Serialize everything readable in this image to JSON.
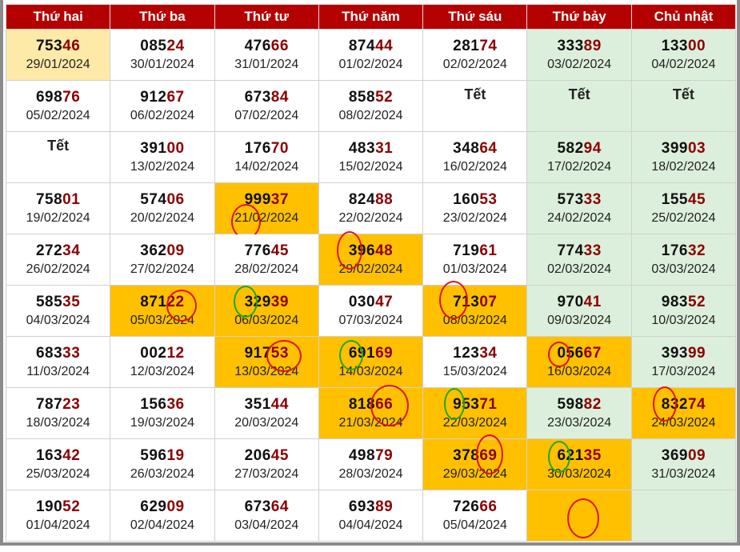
{
  "colors": {
    "header_bg": "#b50000",
    "weekend_bg": "#dcefdc",
    "highlight_orange": "#ffc000",
    "highlight_yellow": "#fde9a8",
    "tail_color": "#8b0000",
    "circle_red": "#e0141e",
    "circle_green": "#1fa81f"
  },
  "headers": [
    "Thứ hai",
    "Thứ ba",
    "Thứ tư",
    "Thứ năm",
    "Thứ sáu",
    "Thứ bảy",
    "Chủ nhật"
  ],
  "weeks": [
    [
      {
        "head": "753",
        "tail": "46",
        "date": "29/01/2024",
        "style": "hl-yellow"
      },
      {
        "head": "085",
        "tail": "24",
        "date": "30/01/2024"
      },
      {
        "head": "476",
        "tail": "66",
        "date": "31/01/2024"
      },
      {
        "head": "874",
        "tail": "44",
        "date": "01/02/2024"
      },
      {
        "head": "281",
        "tail": "74",
        "date": "02/02/2024"
      },
      {
        "head": "333",
        "tail": "89",
        "date": "03/02/2024",
        "style": "weekend"
      },
      {
        "head": "133",
        "tail": "00",
        "date": "04/02/2024",
        "style": "weekend"
      }
    ],
    [
      {
        "head": "698",
        "tail": "76",
        "date": "05/02/2024"
      },
      {
        "head": "912",
        "tail": "67",
        "date": "06/02/2024"
      },
      {
        "head": "673",
        "tail": "84",
        "date": "07/02/2024"
      },
      {
        "head": "858",
        "tail": "52",
        "date": "08/02/2024"
      },
      {
        "tet": "Tết"
      },
      {
        "tet": "Tết",
        "style": "weekend"
      },
      {
        "tet": "Tết",
        "style": "weekend"
      }
    ],
    [
      {
        "tet": "Tết"
      },
      {
        "head": "391",
        "tail": "00",
        "date": "13/02/2024"
      },
      {
        "head": "176",
        "tail": "70",
        "date": "14/02/2024"
      },
      {
        "head": "483",
        "tail": "31",
        "date": "15/02/2024"
      },
      {
        "head": "348",
        "tail": "64",
        "date": "16/02/2024"
      },
      {
        "head": "582",
        "tail": "94",
        "date": "17/02/2024",
        "style": "weekend"
      },
      {
        "head": "399",
        "tail": "03",
        "date": "18/02/2024",
        "style": "weekend"
      }
    ],
    [
      {
        "head": "758",
        "tail": "01",
        "date": "19/02/2024"
      },
      {
        "head": "574",
        "tail": "06",
        "date": "20/02/2024"
      },
      {
        "head": "999",
        "tail": "37",
        "date": "21/02/2024",
        "style": "hl-orange"
      },
      {
        "head": "824",
        "tail": "88",
        "date": "22/02/2024"
      },
      {
        "head": "160",
        "tail": "53",
        "date": "23/02/2024"
      },
      {
        "head": "573",
        "tail": "33",
        "date": "24/02/2024",
        "style": "weekend"
      },
      {
        "head": "155",
        "tail": "45",
        "date": "25/02/2024",
        "style": "weekend"
      }
    ],
    [
      {
        "head": "272",
        "tail": "34",
        "date": "26/02/2024"
      },
      {
        "head": "362",
        "tail": "09",
        "date": "27/02/2024"
      },
      {
        "head": "776",
        "tail": "45",
        "date": "28/02/2024"
      },
      {
        "head": "396",
        "tail": "48",
        "date": "29/02/2024",
        "style": "hl-orange"
      },
      {
        "head": "719",
        "tail": "61",
        "date": "01/03/2024"
      },
      {
        "head": "774",
        "tail": "33",
        "date": "02/03/2024",
        "style": "weekend"
      },
      {
        "head": "176",
        "tail": "32",
        "date": "03/03/2024",
        "style": "weekend"
      }
    ],
    [
      {
        "head": "585",
        "tail": "35",
        "date": "04/03/2024"
      },
      {
        "head": "871",
        "tail": "22",
        "date": "05/03/2024",
        "style": "hl-orange"
      },
      {
        "head": "329",
        "tail": "39",
        "date": "06/03/2024",
        "style": "hl-orange"
      },
      {
        "head": "030",
        "tail": "47",
        "date": "07/03/2024"
      },
      {
        "head": "713",
        "tail": "07",
        "date": "08/03/2024",
        "style": "hl-orange"
      },
      {
        "head": "970",
        "tail": "41",
        "date": "09/03/2024",
        "style": "weekend"
      },
      {
        "head": "983",
        "tail": "52",
        "date": "10/03/2024",
        "style": "weekend"
      }
    ],
    [
      {
        "head": "683",
        "tail": "33",
        "date": "11/03/2024"
      },
      {
        "head": "002",
        "tail": "12",
        "date": "12/03/2024"
      },
      {
        "head": "917",
        "tail": "53",
        "date": "13/03/2024",
        "style": "hl-orange"
      },
      {
        "head": "691",
        "tail": "69",
        "date": "14/03/2024",
        "style": "hl-orange"
      },
      {
        "head": "123",
        "tail": "34",
        "date": "15/03/2024"
      },
      {
        "head": "056",
        "tail": "67",
        "date": "16/03/2024",
        "style": "hl-orange"
      },
      {
        "head": "393",
        "tail": "99",
        "date": "17/03/2024",
        "style": "weekend"
      }
    ],
    [
      {
        "head": "787",
        "tail": "23",
        "date": "18/03/2024"
      },
      {
        "head": "156",
        "tail": "36",
        "date": "19/03/2024"
      },
      {
        "head": "351",
        "tail": "44",
        "date": "20/03/2024"
      },
      {
        "head": "818",
        "tail": "66",
        "date": "21/03/2024",
        "style": "hl-orange"
      },
      {
        "head": "953",
        "tail": "71",
        "date": "22/03/2024",
        "style": "hl-orange"
      },
      {
        "head": "598",
        "tail": "82",
        "date": "23/03/2024",
        "style": "weekend"
      },
      {
        "head": "832",
        "tail": "74",
        "date": "24/03/2024",
        "style": "hl-orange"
      }
    ],
    [
      {
        "head": "163",
        "tail": "42",
        "date": "25/03/2024"
      },
      {
        "head": "596",
        "tail": "19",
        "date": "26/03/2024"
      },
      {
        "head": "206",
        "tail": "45",
        "date": "27/03/2024"
      },
      {
        "head": "498",
        "tail": "79",
        "date": "28/03/2024"
      },
      {
        "head": "378",
        "tail": "69",
        "date": "29/03/2024",
        "style": "hl-orange"
      },
      {
        "head": "621",
        "tail": "35",
        "date": "30/03/2024",
        "style": "hl-orange"
      },
      {
        "head": "369",
        "tail": "09",
        "date": "31/03/2024",
        "style": "weekend"
      }
    ],
    [
      {
        "head": "190",
        "tail": "52",
        "date": "01/04/2024"
      },
      {
        "head": "629",
        "tail": "09",
        "date": "02/04/2024"
      },
      {
        "head": "673",
        "tail": "64",
        "date": "03/04/2024"
      },
      {
        "head": "693",
        "tail": "89",
        "date": "04/04/2024"
      },
      {
        "head": "726",
        "tail": "66",
        "date": "05/04/2024"
      },
      {
        "style": "hl-orange"
      },
      {
        "style": "weekend"
      }
    ]
  ]
}
